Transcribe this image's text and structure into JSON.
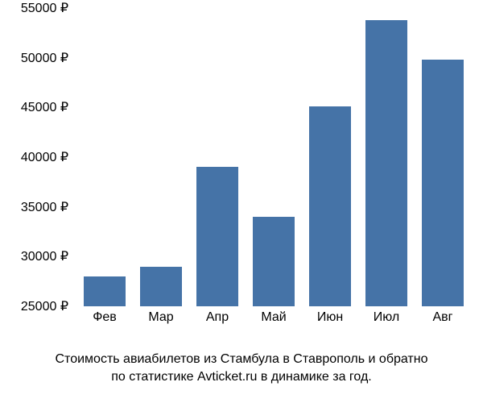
{
  "chart": {
    "type": "bar",
    "categories": [
      "Фев",
      "Мар",
      "Апр",
      "Май",
      "Июн",
      "Июл",
      "Авг"
    ],
    "values": [
      28000,
      29000,
      39000,
      34000,
      45100,
      53800,
      49800
    ],
    "bar_color": "#4573a7",
    "background_color": "#ffffff",
    "y_axis": {
      "min": 25000,
      "max": 55000,
      "step": 5000,
      "ticks": [
        25000,
        30000,
        35000,
        40000,
        45000,
        50000,
        55000
      ],
      "tick_labels": [
        "25000 ₽",
        "30000 ₽",
        "35000 ₽",
        "40000 ₽",
        "45000 ₽",
        "50000 ₽",
        "55000 ₽"
      ]
    },
    "bar_width_ratio": 0.75,
    "label_fontsize": 16,
    "label_color": "#000000"
  },
  "caption": {
    "line1": "Стоимость авиабилетов из Стамбула в Ставрополь и обратно",
    "line2": "по статистике Avticket.ru в динамике за год.",
    "fontsize": 16,
    "color": "#000000"
  }
}
